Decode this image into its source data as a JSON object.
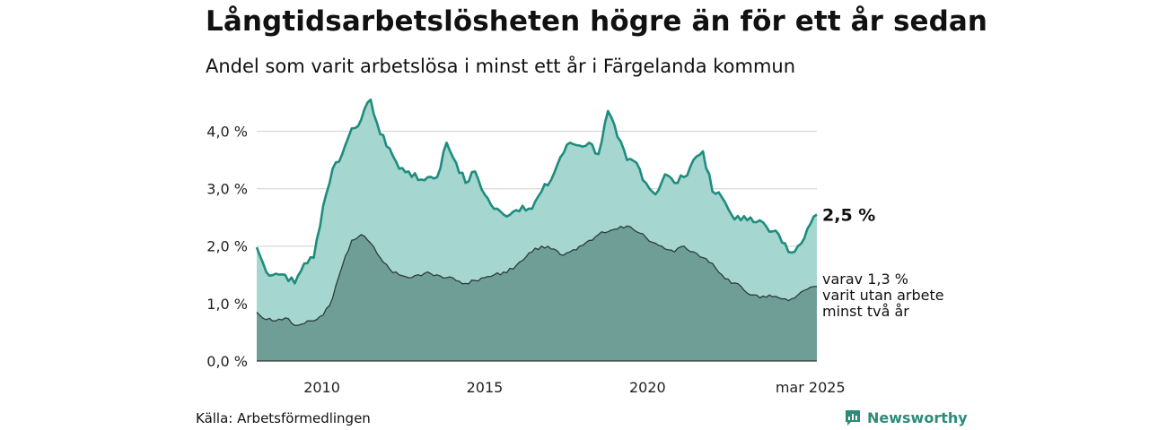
{
  "title": "Långtidsarbetslösheten högre än för ett år sedan",
  "subtitle": "Andel som varit arbetslösa i minst ett år i Färgelanda kommun",
  "source": "Källa: Arbetsförmedlingen",
  "brand": "Newsworthy",
  "colors": {
    "upper_fill": "#a5d6cf",
    "upper_line": "#1e8c7e",
    "lower_fill": "#6f9e96",
    "lower_line": "#2b3d39",
    "grid": "#d9d9d9"
  },
  "chart_data": {
    "type": "area",
    "x_start": "2008-01",
    "x_end": "2025-03",
    "frequency": "monthly (values given every 3 months, interpolated)",
    "xlim": [
      2008.0,
      2025.2
    ],
    "ylim": [
      0,
      4.6
    ],
    "yticks": [
      0,
      1,
      2,
      3,
      4
    ],
    "ytick_labels": [
      "0,0 %",
      "1,0 %",
      "2,0 %",
      "3,0 %",
      "4,0 %"
    ],
    "xticks": [
      2010,
      2015,
      2020,
      2025
    ],
    "xtick_labels": [
      "2010",
      "2015",
      "2020",
      "mar 2025"
    ],
    "grid": true,
    "series": [
      {
        "values": [
          1.98,
          1.55,
          1.52,
          1.5,
          1.35,
          1.7,
          1.8,
          2.7,
          3.35,
          3.6,
          4.05,
          4.2,
          4.55,
          3.95,
          3.7,
          3.35,
          3.3,
          3.15,
          3.2,
          3.2,
          3.8,
          3.45,
          3.1,
          3.3,
          2.9,
          2.65,
          2.55,
          2.6,
          2.7,
          2.65,
          2.95,
          3.15,
          3.55,
          3.8,
          3.75,
          3.8,
          3.6,
          4.35,
          3.9,
          3.5,
          3.45,
          3.1,
          2.9,
          3.25,
          3.1,
          3.2,
          3.5,
          3.65,
          2.95,
          2.85,
          2.55,
          2.45,
          2.5,
          2.45,
          2.25,
          2.2,
          1.9,
          2.0,
          2.3,
          2.55
        ],
        "end_label": "2,5 %"
      },
      {
        "values": [
          0.85,
          0.72,
          0.7,
          0.75,
          0.62,
          0.65,
          0.7,
          0.8,
          1.1,
          1.65,
          2.1,
          2.2,
          2.05,
          1.8,
          1.6,
          1.5,
          1.45,
          1.5,
          1.55,
          1.5,
          1.45,
          1.4,
          1.35,
          1.4,
          1.45,
          1.5,
          1.55,
          1.6,
          1.75,
          1.9,
          2.0,
          1.95,
          1.85,
          1.9,
          2.0,
          2.1,
          2.2,
          2.25,
          2.3,
          2.35,
          2.25,
          2.15,
          2.05,
          1.95,
          1.9,
          2.0,
          1.9,
          1.8,
          1.7,
          1.5,
          1.35,
          1.3,
          1.15,
          1.1,
          1.15,
          1.1,
          1.05,
          1.15,
          1.25,
          1.3
        ],
        "end_label": [
          "varav 1,3 %",
          "varit utan arbete",
          "minst två år"
        ]
      }
    ]
  }
}
